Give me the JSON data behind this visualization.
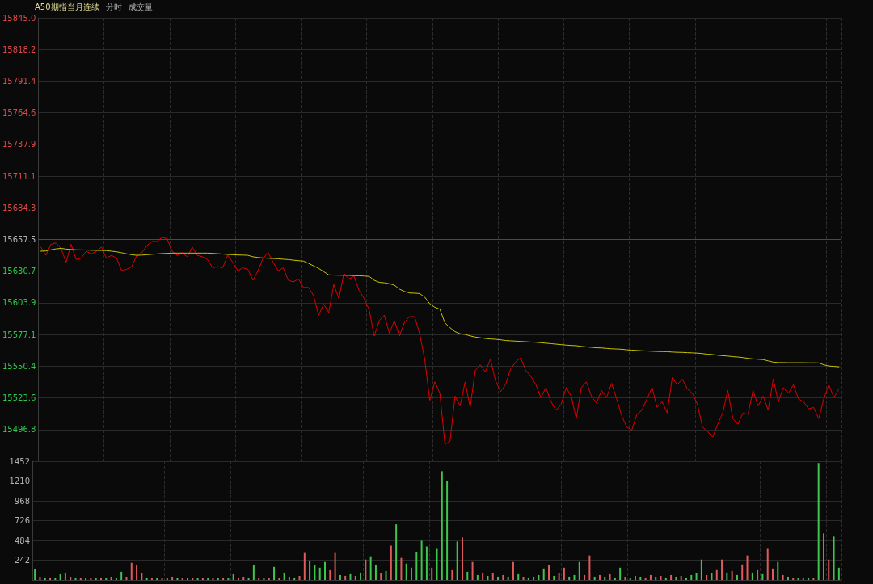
{
  "chart_data": [
    {
      "type": "line",
      "title": "A50期指当月连续",
      "subtitle": "分时",
      "annotations": [
        "成交量"
      ],
      "categories": [
        null,
        null,
        null,
        null,
        null,
        null,
        null,
        null,
        null,
        null,
        null,
        null,
        null,
        null,
        null,
        null,
        null,
        null,
        null,
        null,
        null,
        null,
        null,
        null,
        null,
        null,
        null,
        null,
        null,
        null,
        null,
        null,
        null,
        null,
        null,
        null,
        null,
        null,
        null,
        null,
        null,
        null,
        null,
        null,
        null,
        null,
        null,
        null,
        null,
        null,
        null,
        null,
        null,
        null,
        null,
        null,
        null,
        null,
        null,
        null,
        null,
        null,
        null,
        null,
        null,
        null,
        null,
        null,
        null,
        null,
        null,
        null,
        null,
        null,
        null,
        null,
        null,
        null,
        null,
        null,
        null,
        null,
        null,
        null,
        null,
        null,
        null,
        null,
        null,
        null,
        null,
        null,
        null,
        null,
        null,
        null,
        null,
        null,
        null,
        null,
        null,
        null,
        null,
        null,
        null,
        null,
        null,
        null,
        null,
        null,
        null,
        null,
        null,
        null,
        null,
        null,
        null,
        null,
        null,
        null,
        null,
        null,
        null,
        null,
        null,
        null,
        null,
        null,
        null,
        null,
        null,
        null,
        null,
        null,
        null,
        null,
        null,
        null,
        null,
        null,
        null,
        null,
        null,
        null,
        null,
        null,
        null,
        null,
        null,
        null,
        null,
        null,
        null,
        null,
        null,
        null,
        null,
        null,
        null
      ],
      "series": [
        {
          "color": "#e00000",
          "values": [
            15651.1,
            15644.1,
            15653.5,
            15654.6,
            15650.0,
            15638.2,
            15653.5,
            15640.5,
            15641.7,
            15647.6,
            15645.2,
            15647.6,
            15651.1,
            15641.7,
            15644.1,
            15641.7,
            15631.1,
            15632.3,
            15634.6,
            15644.1,
            15646.4,
            15652.3,
            15655.8,
            15655.8,
            15659.3,
            15658.2,
            15647.6,
            15644.1,
            15646.4,
            15642.9,
            15651.1,
            15644.1,
            15642.9,
            15640.5,
            15633.5,
            15634.6,
            15633.5,
            15644.1,
            15638.2,
            15631.1,
            15633.5,
            15632.3,
            15622.9,
            15631.1,
            15641.7,
            15646.4,
            15638.2,
            15631.1,
            15633.5,
            15622.9,
            15621.7,
            15624.1,
            15617.0,
            15617.0,
            15610.0,
            15593.5,
            15602.9,
            15595.8,
            15619.4,
            15607.6,
            15628.8,
            15624.1,
            15626.4,
            15614.6,
            15607.6,
            15598.2,
            15575.8,
            15588.8,
            15593.5,
            15578.2,
            15588.8,
            15575.8,
            15587.6,
            15592.3,
            15592.2,
            15577.8,
            15556.2,
            15521.5,
            15537.1,
            15527.5,
            15484.4,
            15486.8,
            15525.1,
            15516.7,
            15537.1,
            15515.6,
            15546.7,
            15551.5,
            15545.5,
            15556.2,
            15538.3,
            15528.7,
            15534.7,
            15547.9,
            15553.9,
            15557.4,
            15546.7,
            15541.9,
            15534.7,
            15523.9,
            15532.3,
            15520.3,
            15513.1,
            15517.9,
            15532.3,
            15525.1,
            15506.0,
            15532.3,
            15537.1,
            15525.1,
            15519.1,
            15529.9,
            15523.9,
            15535.9,
            15522.7,
            15508.4,
            15498.8,
            15496.4,
            15509.6,
            15513.1,
            15522.7,
            15532.3,
            15515.5,
            15520.3,
            15510.8,
            15540.7,
            15534.7,
            15539.5,
            15531.1,
            15527.5,
            15517.9,
            15498.8,
            15495.2,
            15490.4,
            15501.2,
            15510.8,
            15529.9,
            15506.0,
            15501.2,
            15510.8,
            15509.6,
            15529.9,
            15516.7,
            15525.1,
            15513.1,
            15539.5,
            15520.3,
            15532.3,
            15527.5,
            15534.7,
            15522.7,
            15520.3,
            15514.3,
            15515.5,
            15506.0,
            15522.7,
            15534.7,
            15523.9,
            15531.1
          ]
        },
        {
          "color": "#c8c400",
          "values": [
            15647.6,
            15647.8,
            15648.8,
            15649.6,
            15650.0,
            15649.4,
            15649.1,
            15648.8,
            15648.7,
            15648.6,
            15648.4,
            15648.3,
            15648.2,
            15648.1,
            15647.6,
            15647.1,
            15646.3,
            15645.4,
            15644.6,
            15644.1,
            15644.3,
            15644.6,
            15645.0,
            15645.3,
            15645.6,
            15645.8,
            15646.0,
            15646.0,
            15646.0,
            15646.0,
            15646.0,
            15646.0,
            15646.0,
            15646.0,
            15645.8,
            15645.5,
            15645.2,
            15644.8,
            15644.6,
            15644.4,
            15644.3,
            15644.1,
            15642.9,
            15642.3,
            15641.9,
            15641.6,
            15641.4,
            15641.2,
            15640.8,
            15640.5,
            15640.0,
            15639.6,
            15639.2,
            15637.3,
            15635.2,
            15633.1,
            15630.3,
            15627.6,
            15627.4,
            15627.3,
            15627.2,
            15627.1,
            15626.9,
            15626.8,
            15626.6,
            15626.3,
            15623.0,
            15621.3,
            15620.9,
            15620.1,
            15618.9,
            15615.5,
            15613.6,
            15612.3,
            15612.1,
            15611.8,
            15608.8,
            15603.1,
            15600.2,
            15598.6,
            15587.0,
            15583.0,
            15579.6,
            15577.8,
            15577.2,
            15576.0,
            15575.0,
            15574.4,
            15573.8,
            15573.4,
            15573.1,
            15572.7,
            15572.1,
            15571.8,
            15571.6,
            15571.3,
            15571.1,
            15570.8,
            15570.6,
            15570.2,
            15569.8,
            15569.4,
            15569.0,
            15568.6,
            15568.2,
            15567.9,
            15567.7,
            15567.1,
            15566.7,
            15566.3,
            15565.9,
            15565.8,
            15565.4,
            15565.1,
            15564.9,
            15564.7,
            15564.2,
            15563.9,
            15563.7,
            15563.4,
            15563.2,
            15563.0,
            15562.8,
            15562.7,
            15562.6,
            15562.3,
            15562.1,
            15562.0,
            15561.8,
            15561.6,
            15561.4,
            15561.0,
            15560.5,
            15560.2,
            15559.6,
            15559.2,
            15558.9,
            15558.4,
            15558.1,
            15557.6,
            15557.0,
            15556.5,
            15556.2,
            15555.9,
            15554.8,
            15553.8,
            15553.4,
            15553.4,
            15553.3,
            15553.3,
            15553.3,
            15553.3,
            15553.2,
            15553.2,
            15553.1,
            15551.5,
            15550.5,
            15550.2,
            15549.8
          ]
        }
      ],
      "ylim": [
        15470.0,
        15845.0
      ],
      "yticks": [
        {
          "value": 15845.0,
          "label": "15845.0"
        },
        15818.2,
        15791.4,
        15764.6,
        15737.9,
        15711.1,
        15684.3,
        15657.5,
        15630.7,
        15603.9,
        15577.1,
        15550.4,
        15523.6,
        15496.8
      ],
      "ref_lines": [
        {
          "axis": "y",
          "value": 15657.5,
          "color": "#4a4a4a"
        }
      ],
      "grid": true,
      "tick_labels": "y"
    },
    {
      "type": "bar",
      "categories": [
        null,
        null,
        null,
        null,
        null,
        null,
        null,
        null,
        null,
        null,
        null,
        null,
        null,
        null,
        null,
        null,
        null,
        null,
        null,
        null,
        null,
        null,
        null,
        null,
        null,
        null,
        null,
        null,
        null,
        null,
        null,
        null,
        null,
        null,
        null,
        null,
        null,
        null,
        null,
        null,
        null,
        null,
        null,
        null,
        null,
        null,
        null,
        null,
        null,
        null,
        null,
        null,
        null,
        null,
        null,
        null,
        null,
        null,
        null,
        null,
        null,
        null,
        null,
        null,
        null,
        null,
        null,
        null,
        null,
        null,
        null,
        null,
        null,
        null,
        null,
        null,
        null,
        null,
        null,
        null,
        null,
        null,
        null,
        null,
        null,
        null,
        null,
        null,
        null,
        null,
        null,
        null,
        null,
        null,
        null,
        null,
        null,
        null,
        null,
        null,
        null,
        null,
        null,
        null,
        null,
        null,
        null,
        null,
        null,
        null,
        null,
        null,
        null,
        null,
        null,
        null,
        null,
        null,
        null,
        null,
        null,
        null,
        null,
        null,
        null,
        null,
        null,
        null,
        null,
        null,
        null,
        null,
        null,
        null,
        null,
        null,
        null,
        null,
        null,
        null,
        null,
        null,
        null,
        null,
        null,
        null,
        null,
        null,
        null,
        null,
        null,
        null,
        null,
        null,
        null,
        null,
        null,
        null,
        null
      ],
      "values": [
        130,
        40,
        30,
        30,
        20,
        70,
        90,
        40,
        20,
        20,
        30,
        20,
        20,
        30,
        20,
        40,
        30,
        100,
        40,
        210,
        180,
        80,
        30,
        20,
        30,
        20,
        20,
        40,
        20,
        20,
        30,
        20,
        20,
        20,
        30,
        20,
        20,
        30,
        20,
        70,
        20,
        40,
        30,
        180,
        30,
        30,
        20,
        160,
        30,
        90,
        40,
        30,
        50,
        330,
        230,
        180,
        150,
        220,
        120,
        330,
        60,
        50,
        70,
        50,
        90,
        250,
        290,
        180,
        80,
        110,
        420,
        680,
        270,
        200,
        150,
        340,
        480,
        410,
        150,
        380,
        1330,
        1210,
        120,
        470,
        520,
        100,
        220,
        60,
        90,
        50,
        80,
        40,
        60,
        40,
        220,
        70,
        40,
        30,
        40,
        60,
        140,
        180,
        50,
        80,
        150,
        40,
        60,
        220,
        60,
        300,
        40,
        60,
        40,
        70,
        30,
        150,
        40,
        30,
        50,
        40,
        30,
        60,
        40,
        50,
        30,
        60,
        40,
        50,
        30,
        60,
        80,
        250,
        60,
        80,
        120,
        250,
        90,
        110,
        60,
        190,
        300,
        90,
        120,
        70,
        380,
        140,
        220,
        60,
        40,
        30,
        20,
        30,
        20,
        20,
        1430,
        570,
        250,
        530,
        150
      ],
      "colors": [
        "#3dc64c",
        "#e05a5a",
        "#3dc64c",
        "#e05a5a",
        "#3dc64c",
        "#3dc64c",
        "#e05a5a",
        "#e05a5a",
        "#3dc64c",
        "#e05a5a",
        "#3dc64c",
        "#e05a5a",
        "#3dc64c",
        "#e05a5a",
        "#3dc64c",
        "#e05a5a",
        "#3dc64c",
        "#3dc64c",
        "#e05a5a",
        "#e05a5a",
        "#e05a5a",
        "#e05a5a",
        "#3dc64c",
        "#e05a5a",
        "#3dc64c",
        "#e05a5a",
        "#3dc64c",
        "#e05a5a",
        "#3dc64c",
        "#e05a5a",
        "#3dc64c",
        "#e05a5a",
        "#3dc64c",
        "#e05a5a",
        "#3dc64c",
        "#e05a5a",
        "#3dc64c",
        "#e05a5a",
        "#3dc64c",
        "#3dc64c",
        "#e05a5a",
        "#e05a5a",
        "#3dc64c",
        "#3dc64c",
        "#e05a5a",
        "#3dc64c",
        "#e05a5a",
        "#3dc64c",
        "#e05a5a",
        "#3dc64c",
        "#e05a5a",
        "#3dc64c",
        "#e05a5a",
        "#e05a5a",
        "#3dc64c",
        "#3dc64c",
        "#3dc64c",
        "#3dc64c",
        "#e05a5a",
        "#e05a5a",
        "#3dc64c",
        "#e05a5a",
        "#3dc64c",
        "#e05a5a",
        "#3dc64c",
        "#e05a5a",
        "#3dc64c",
        "#3dc64c",
        "#e05a5a",
        "#3dc64c",
        "#e05a5a",
        "#3dc64c",
        "#e05a5a",
        "#3dc64c",
        "#e05a5a",
        "#3dc64c",
        "#3dc64c",
        "#3dc64c",
        "#e05a5a",
        "#3dc64c",
        "#3dc64c",
        "#3dc64c",
        "#e05a5a",
        "#3dc64c",
        "#e05a5a",
        "#3dc64c",
        "#e05a5a",
        "#3dc64c",
        "#e05a5a",
        "#3dc64c",
        "#e05a5a",
        "#3dc64c",
        "#e05a5a",
        "#3dc64c",
        "#e05a5a",
        "#3dc64c",
        "#e05a5a",
        "#3dc64c",
        "#e05a5a",
        "#3dc64c",
        "#3dc64c",
        "#e05a5a",
        "#3dc64c",
        "#e05a5a",
        "#e05a5a",
        "#3dc64c",
        "#3dc64c",
        "#3dc64c",
        "#e05a5a",
        "#e05a5a",
        "#3dc64c",
        "#e05a5a",
        "#3dc64c",
        "#e05a5a",
        "#3dc64c",
        "#3dc64c",
        "#e05a5a",
        "#3dc64c",
        "#e05a5a",
        "#3dc64c",
        "#e05a5a",
        "#e05a5a",
        "#3dc64c",
        "#e05a5a",
        "#3dc64c",
        "#e05a5a",
        "#3dc64c",
        "#e05a5a",
        "#3dc64c",
        "#3dc64c",
        "#3dc64c",
        "#3dc64c",
        "#e05a5a",
        "#3dc64c",
        "#e05a5a",
        "#e05a5a",
        "#3dc64c",
        "#e05a5a",
        "#3dc64c",
        "#e05a5a",
        "#e05a5a",
        "#3dc64c",
        "#e05a5a",
        "#3dc64c",
        "#e05a5a",
        "#e05a5a",
        "#3dc64c",
        "#e05a5a",
        "#3dc64c",
        "#e05a5a",
        "#3dc64c",
        "#e05a5a",
        "#3dc64c",
        "#e05a5a",
        "#3dc64c",
        "#e05a5a",
        "#e05a5a",
        "#3dc64c",
        "#3dc64c"
      ],
      "ylim": [
        0,
        1452
      ],
      "yticks": [
        242,
        484,
        726,
        968,
        1210,
        1452
      ],
      "grid": true,
      "tick_labels": "y"
    }
  ]
}
